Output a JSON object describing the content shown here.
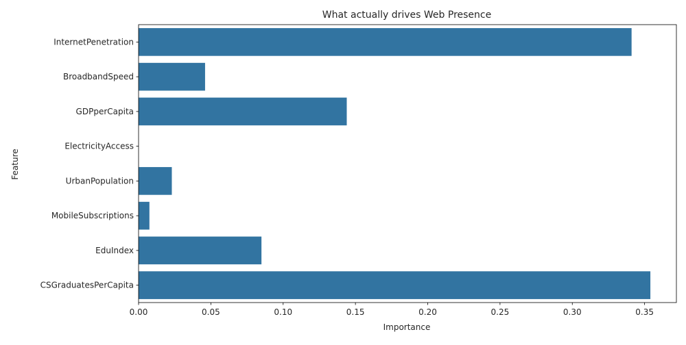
{
  "chart_data": {
    "type": "bar",
    "orientation": "horizontal",
    "title": "What actually drives Web Presence",
    "xlabel": "Importance",
    "ylabel": "Feature",
    "categories": [
      "InternetPenetration",
      "BroadbandSpeed",
      "GDPperCapita",
      "ElectricityAccess",
      "UrbanPopulation",
      "MobileSubscriptions",
      "EduIndex",
      "CSGraduatesPerCapita"
    ],
    "values": [
      0.341,
      0.046,
      0.144,
      0.0,
      0.023,
      0.0075,
      0.085,
      0.354
    ],
    "xlim": [
      0,
      0.372
    ],
    "xticks": [
      0.0,
      0.05,
      0.1,
      0.15,
      0.2,
      0.25,
      0.3,
      0.35
    ],
    "xtick_labels": [
      "0.00",
      "0.05",
      "0.10",
      "0.15",
      "0.20",
      "0.25",
      "0.30",
      "0.35"
    ],
    "bar_color": "#3274a1",
    "grid": false,
    "legend": "none"
  }
}
